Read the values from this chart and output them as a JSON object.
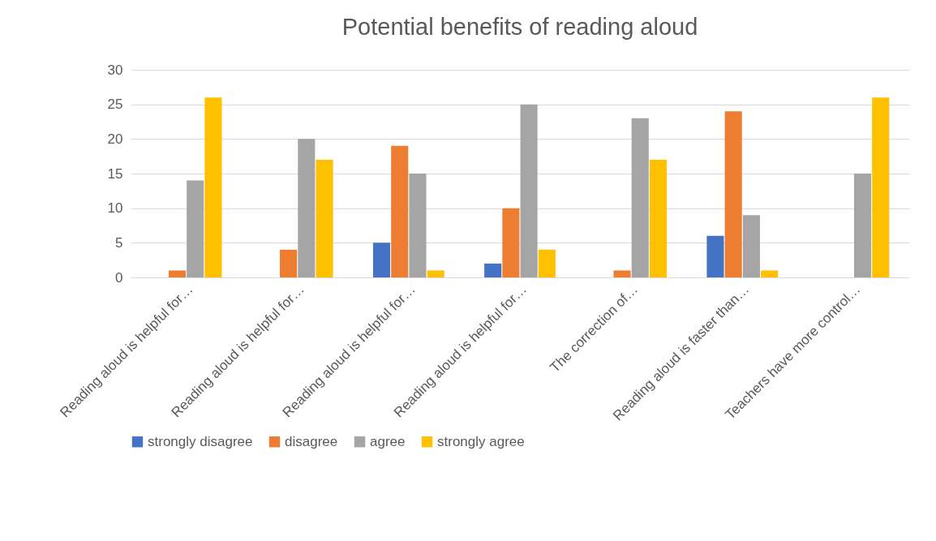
{
  "chart_data": {
    "type": "bar",
    "title": "Potential benefits of reading aloud",
    "categories": [
      "Reading aloud is helpful for…",
      "Reading aloud is helpful for…",
      "Reading aloud is helpful for…",
      "Reading aloud is helpful for…",
      "The correction of…",
      "Reading aloud is faster than…",
      "Teachers have more control…"
    ],
    "series": [
      {
        "name": "strongly disagree",
        "color": "#4472c4",
        "values": [
          0,
          0,
          5,
          2,
          0,
          6,
          0
        ]
      },
      {
        "name": "disagree",
        "color": "#ed7d31",
        "values": [
          1,
          4,
          19,
          10,
          1,
          24,
          0
        ]
      },
      {
        "name": "agree",
        "color": "#a5a5a5",
        "values": [
          14,
          20,
          15,
          25,
          23,
          9,
          15
        ]
      },
      {
        "name": "strongly agree",
        "color": "#ffc000",
        "values": [
          26,
          17,
          1,
          4,
          17,
          1,
          26
        ]
      }
    ],
    "ylim": [
      0,
      30
    ],
    "yticks": [
      0,
      5,
      10,
      15,
      20,
      25,
      30
    ],
    "grid": "y",
    "legend": "bottom"
  }
}
